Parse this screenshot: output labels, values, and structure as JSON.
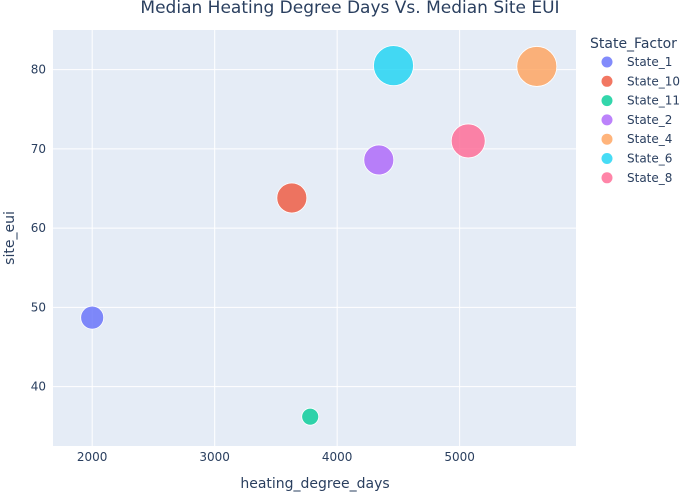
{
  "chart_data": {
    "type": "scatter",
    "title": "Median Heating Degree Days Vs. Median Site EUI",
    "xlabel": "heating_degree_days",
    "ylabel": "site_eui",
    "xlim": [
      1680,
      5950
    ],
    "ylim": [
      32.5,
      85
    ],
    "x_ticks": [
      2000,
      3000,
      4000,
      5000
    ],
    "y_ticks": [
      40,
      50,
      60,
      70,
      80
    ],
    "grid": true,
    "legend_title": "State_Factor",
    "legend_position": "right",
    "series": [
      {
        "name": "State_1",
        "color": "#636efa",
        "x": 2000,
        "y": 48.7,
        "size": 2.3
      },
      {
        "name": "State_10",
        "color": "#ef553b",
        "x": 3630,
        "y": 63.8,
        "size": 3.0
      },
      {
        "name": "State_11",
        "color": "#00cc96",
        "x": 3780,
        "y": 36.2,
        "size": 1.7
      },
      {
        "name": "State_2",
        "color": "#ab63fa",
        "x": 4340,
        "y": 68.6,
        "size": 3.0
      },
      {
        "name": "State_4",
        "color": "#ffa15a",
        "x": 5630,
        "y": 80.4,
        "size": 4.0
      },
      {
        "name": "State_6",
        "color": "#19d3f3",
        "x": 4460,
        "y": 80.5,
        "size": 4.0
      },
      {
        "name": "State_8",
        "color": "#ff6692",
        "x": 5070,
        "y": 71.0,
        "size": 3.4
      }
    ]
  }
}
